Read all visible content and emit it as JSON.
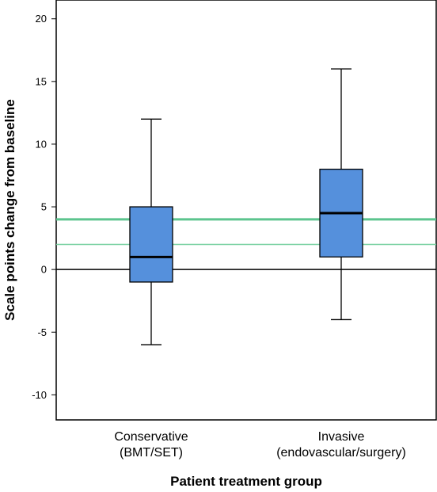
{
  "chart_data": {
    "type": "box",
    "xlabel": "Patient treatment group",
    "ylabel": "Scale points change from baseline",
    "ylim": [
      -12,
      21.5
    ],
    "yticks": [
      -10,
      -5,
      0,
      5,
      10,
      15,
      20
    ],
    "categories": [
      [
        "Conservative",
        "(BMT/SET)"
      ],
      [
        "Invasive",
        "(endovascular/surgery)"
      ]
    ],
    "boxes": [
      {
        "min": -6,
        "q1": -1,
        "median": 1,
        "q3": 5,
        "max": 12
      },
      {
        "min": -4,
        "q1": 1,
        "median": 4.5,
        "q3": 8,
        "max": 16
      }
    ],
    "reference_lines": [
      {
        "value": 0,
        "color": "#000000"
      },
      {
        "value": 4,
        "color": "#5cc48e"
      },
      {
        "value": 2,
        "color": "#74cf9e"
      }
    ],
    "box_color": "#5590dc",
    "grid": false
  }
}
